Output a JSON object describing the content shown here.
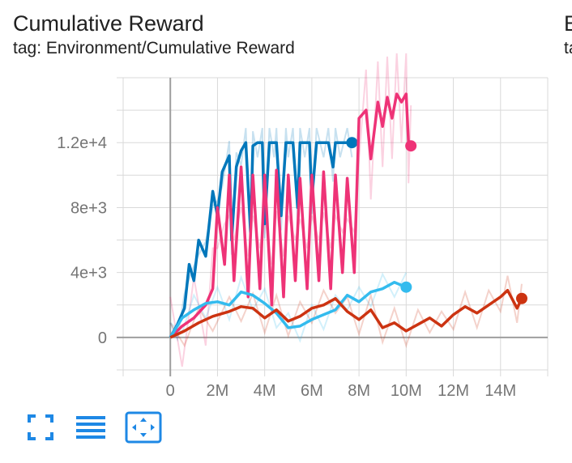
{
  "card": {
    "title": "Cumulative Reward",
    "tag": "tag: Environment/Cumulative Reward",
    "next_title": "E",
    "next_tag": "ta"
  },
  "toolbar": {
    "icons": [
      "expand-icon",
      "toggle-log-scale-icon",
      "fit-domain-icon"
    ],
    "accent": "#1e88e5"
  },
  "chart_data": {
    "type": "line",
    "title": "Cumulative Reward",
    "xlabel": "",
    "ylabel": "",
    "xlim": [
      -2000000,
      16000000
    ],
    "ylim": [
      -2000,
      16000
    ],
    "x_ticks": [
      0,
      2000000,
      4000000,
      6000000,
      8000000,
      10000000,
      12000000,
      14000000
    ],
    "x_tick_labels": [
      "0",
      "2M",
      "4M",
      "6M",
      "8M",
      "10M",
      "12M",
      "14M"
    ],
    "y_ticks": [
      0,
      4000,
      8000,
      12000
    ],
    "y_tick_labels": [
      "0",
      "4e+3",
      "8e+3",
      "1.2e+4"
    ],
    "grid": true,
    "series": [
      {
        "color": "#0077bb",
        "x": [
          0,
          300000,
          600000,
          800000,
          1000000,
          1200000,
          1500000,
          1800000,
          2000000,
          2200000,
          2500000,
          2600000,
          2800000,
          3000000,
          3200000,
          3400000,
          3500000,
          3700000,
          3900000,
          4000000,
          4200000,
          4400000,
          4500000,
          4700000,
          4900000,
          5000000,
          5200000,
          5400000,
          5500000,
          5700000,
          5900000,
          6000000,
          6200000,
          6500000,
          6700000,
          6900000,
          7000000,
          7200000,
          7500000,
          7700000
        ],
        "y": [
          0,
          800,
          1800,
          4500,
          3500,
          6000,
          5000,
          9000,
          7500,
          10200,
          11200,
          6000,
          10500,
          11500,
          12000,
          6500,
          11800,
          12000,
          12000,
          7000,
          12000,
          12000,
          12000,
          7500,
          12000,
          12000,
          12000,
          8000,
          12000,
          12000,
          12000,
          8500,
          12000,
          12000,
          12000,
          10500,
          12000,
          12000,
          12000,
          12000
        ]
      },
      {
        "color": "#ee3377",
        "x": [
          0,
          500000,
          1000000,
          1500000,
          1800000,
          2000000,
          2300000,
          2500000,
          2700000,
          3000000,
          3300000,
          3500000,
          3800000,
          4000000,
          4300000,
          4500000,
          4800000,
          5000000,
          5300000,
          5500000,
          5800000,
          6000000,
          6300000,
          6500000,
          6800000,
          7000000,
          7300000,
          7500000,
          7800000,
          8000000,
          8300000,
          8500000,
          8800000,
          9000000,
          9200000,
          9400000,
          9600000,
          9800000,
          10000000,
          10100000,
          10200000
        ],
        "y": [
          0,
          700,
          1200,
          2000,
          3000,
          8000,
          4500,
          10000,
          3500,
          10500,
          2500,
          10000,
          3000,
          10000,
          2000,
          10300,
          2500,
          10000,
          3500,
          9800,
          3000,
          10000,
          3500,
          10200,
          3000,
          10000,
          4000,
          9800,
          4000,
          13500,
          14000,
          11000,
          14500,
          13000,
          14800,
          13500,
          15000,
          14500,
          15000,
          12000,
          11800
        ]
      },
      {
        "color": "#33bbee",
        "x": [
          0,
          500000,
          1000000,
          1500000,
          2000000,
          2500000,
          3000000,
          3500000,
          4000000,
          4500000,
          5000000,
          5500000,
          6000000,
          6500000,
          7000000,
          7500000,
          8000000,
          8500000,
          9000000,
          9500000,
          10000000
        ],
        "y": [
          0,
          1200,
          1700,
          2100,
          2200,
          2000,
          2800,
          2600,
          2100,
          1500,
          600,
          700,
          1100,
          1400,
          1700,
          2600,
          2200,
          2800,
          3000,
          3400,
          3100
        ]
      },
      {
        "color": "#cc3311",
        "x": [
          0,
          600000,
          1200000,
          1800000,
          2500000,
          3000000,
          3500000,
          4000000,
          4500000,
          5000000,
          5500000,
          6000000,
          6500000,
          7000000,
          7500000,
          8000000,
          8500000,
          9000000,
          9500000,
          10000000,
          10500000,
          11000000,
          11500000,
          12000000,
          12500000,
          13000000,
          13500000,
          14000000,
          14300000,
          14700000,
          14900000
        ],
        "y": [
          0,
          400,
          900,
          1300,
          1600,
          1900,
          1800,
          1200,
          1700,
          1000,
          1300,
          1800,
          2000,
          2400,
          1600,
          1100,
          1700,
          600,
          900,
          400,
          800,
          1200,
          700,
          1400,
          1900,
          1500,
          2000,
          2500,
          2900,
          1800,
          2400
        ]
      }
    ]
  }
}
